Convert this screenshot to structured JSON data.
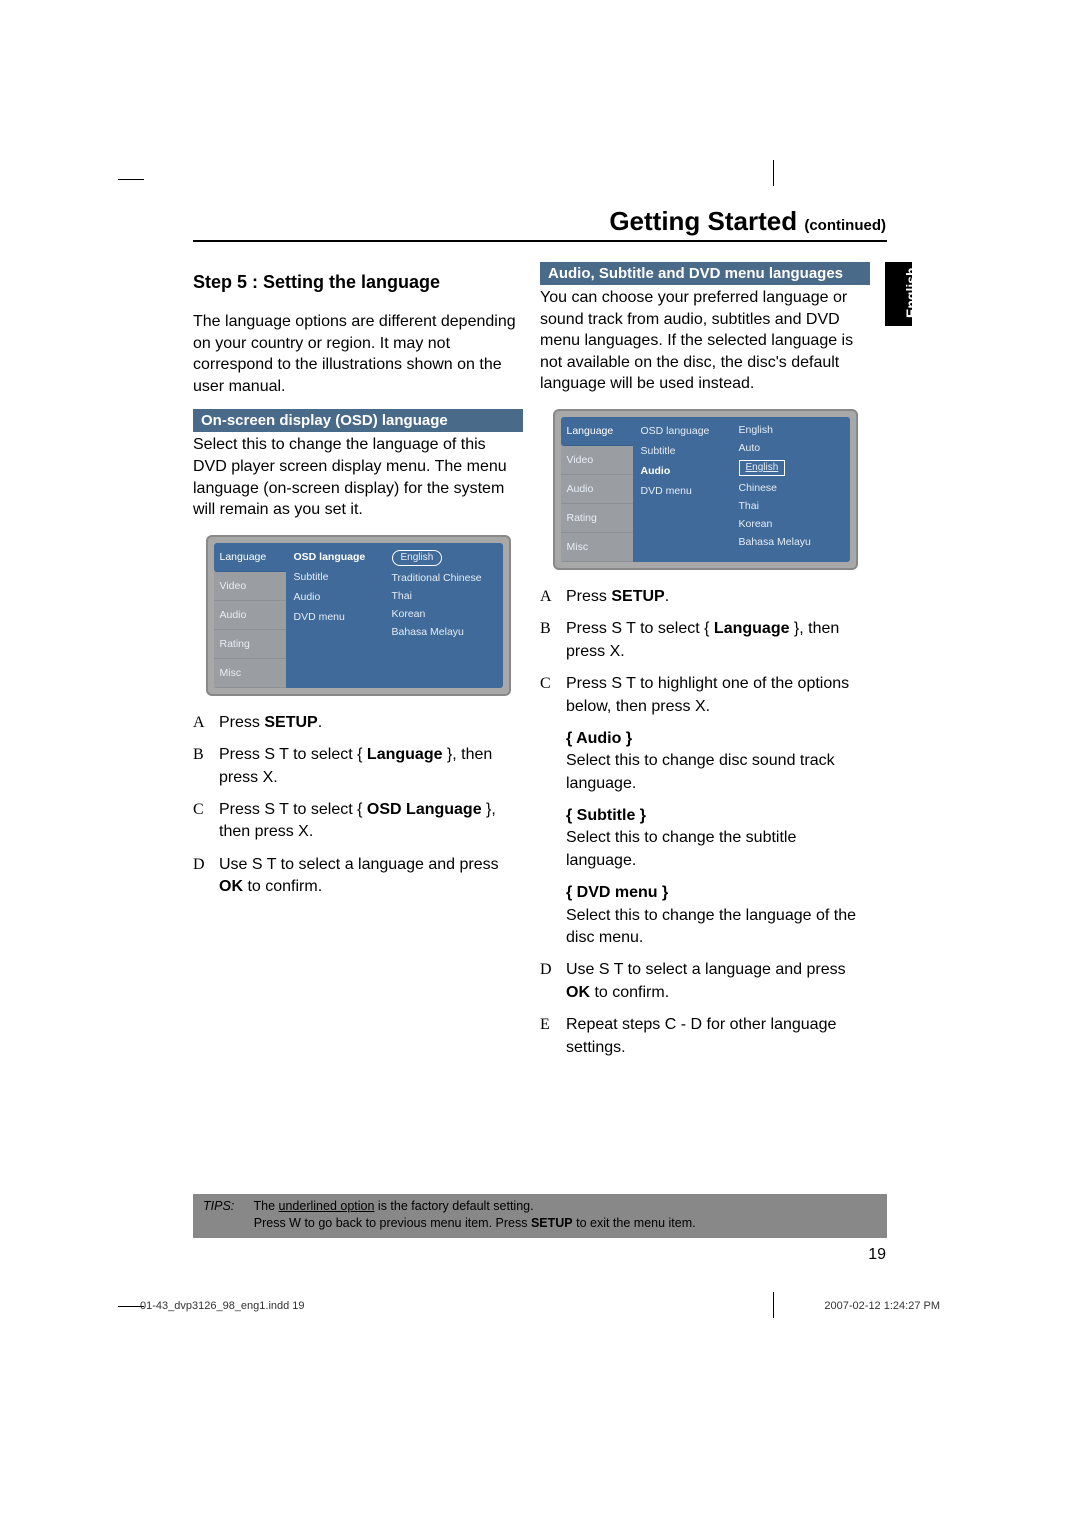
{
  "page_title": "Getting Started",
  "page_title_suffix": "(continued)",
  "side_tab": "English",
  "page_number": "19",
  "footer_left": "01-43_dvp3126_98_eng1.indd   19",
  "footer_right": "2007-02-12   1:24:27 PM",
  "left": {
    "heading": "Step 5 :  Setting the language",
    "intro": "The language options are different depending on your country or region. It may not correspond to the illustrations shown on the user manual.",
    "section_bar": "On-screen display (OSD) language",
    "section_text": "Select this to change the language of this DVD player screen display menu. The menu language (on-screen display) for the system will remain as you set it.",
    "steps": [
      {
        "letter": "A",
        "html": "Press <b>SETUP</b>."
      },
      {
        "letter": "B",
        "html": "Press  S   T  to select { <b>Language</b> }, then press  X."
      },
      {
        "letter": "C",
        "html": "Press  S   T  to select { <b>OSD Language</b> }, then press  X."
      },
      {
        "letter": "D",
        "html": "Use  S   T  to select a language and press <b>OK</b> to confirm."
      }
    ],
    "osd": {
      "tabs": [
        "Language",
        "Video",
        "Audio",
        "Rating",
        "Misc"
      ],
      "active_tab": 0,
      "mid_items": [
        "OSD language",
        "Subtitle",
        "Audio",
        "DVD menu"
      ],
      "mid_selected": 0,
      "values": [
        {
          "text": "English",
          "style": "pill"
        },
        {
          "text": "Traditional Chinese",
          "style": "plain"
        },
        {
          "text": "Thai",
          "style": "plain"
        },
        {
          "text": "Korean",
          "style": "plain"
        },
        {
          "text": "Bahasa Melayu",
          "style": "plain"
        }
      ],
      "colors": {
        "panel": "#3f6a99",
        "frame_bg": "#a8a8a8",
        "text": "#ffffff"
      }
    }
  },
  "right": {
    "section_bar": "Audio, Subtitle and DVD menu languages",
    "section_text": "You can choose your preferred language or sound track from audio, subtitles and DVD menu languages. If the selected language is not available on the disc, the disc's default language will be used instead.",
    "osd": {
      "tabs": [
        "Language",
        "Video",
        "Audio",
        "Rating",
        "Misc"
      ],
      "active_tab": 0,
      "mid_items": [
        "OSD language",
        "Subtitle",
        "Audio",
        "DVD menu"
      ],
      "mid_selected": 2,
      "values": [
        {
          "text": "English",
          "style": "plain"
        },
        {
          "text": "Auto",
          "style": "plain"
        },
        {
          "text": "English",
          "style": "boxed"
        },
        {
          "text": "Chinese",
          "style": "plain"
        },
        {
          "text": "Thai",
          "style": "plain"
        },
        {
          "text": "Korean",
          "style": "plain"
        },
        {
          "text": "Bahasa Melayu",
          "style": "plain"
        }
      ],
      "colors": {
        "panel": "#3f6a99",
        "frame_bg": "#a8a8a8",
        "text": "#ffffff"
      }
    },
    "steps_top": [
      {
        "letter": "A",
        "html": "Press <b>SETUP</b>."
      },
      {
        "letter": "B",
        "html": "Press  S   T  to select { <b>Language</b> }, then press  X."
      },
      {
        "letter": "C",
        "html": "Press  S   T  to highlight one of the options below, then press  X."
      }
    ],
    "options": [
      {
        "label": "{ Audio }",
        "text": "Select this to change disc sound track language."
      },
      {
        "label": "{ Subtitle }",
        "text": "Select this to change the subtitle language."
      },
      {
        "label": "{ DVD menu }",
        "text": "Select this to change the language of the disc menu."
      }
    ],
    "steps_bottom": [
      {
        "letter": "D",
        "html": "Use  S   T  to select a language and press <b>OK</b> to confirm."
      },
      {
        "letter": "E",
        "html": "Repeat steps C  -  D  for other language settings."
      }
    ]
  },
  "tips": {
    "label": "TIPS:",
    "line1_html": "The <u>underlined option</u> is the factory default setting.",
    "line2_html": "Press  W to go back to previous menu item. Press <b>SETUP</b> to exit the menu item."
  },
  "colors": {
    "section_bar_bg": "#4a6a8a",
    "tips_bg": "#888888",
    "text": "#000000"
  }
}
